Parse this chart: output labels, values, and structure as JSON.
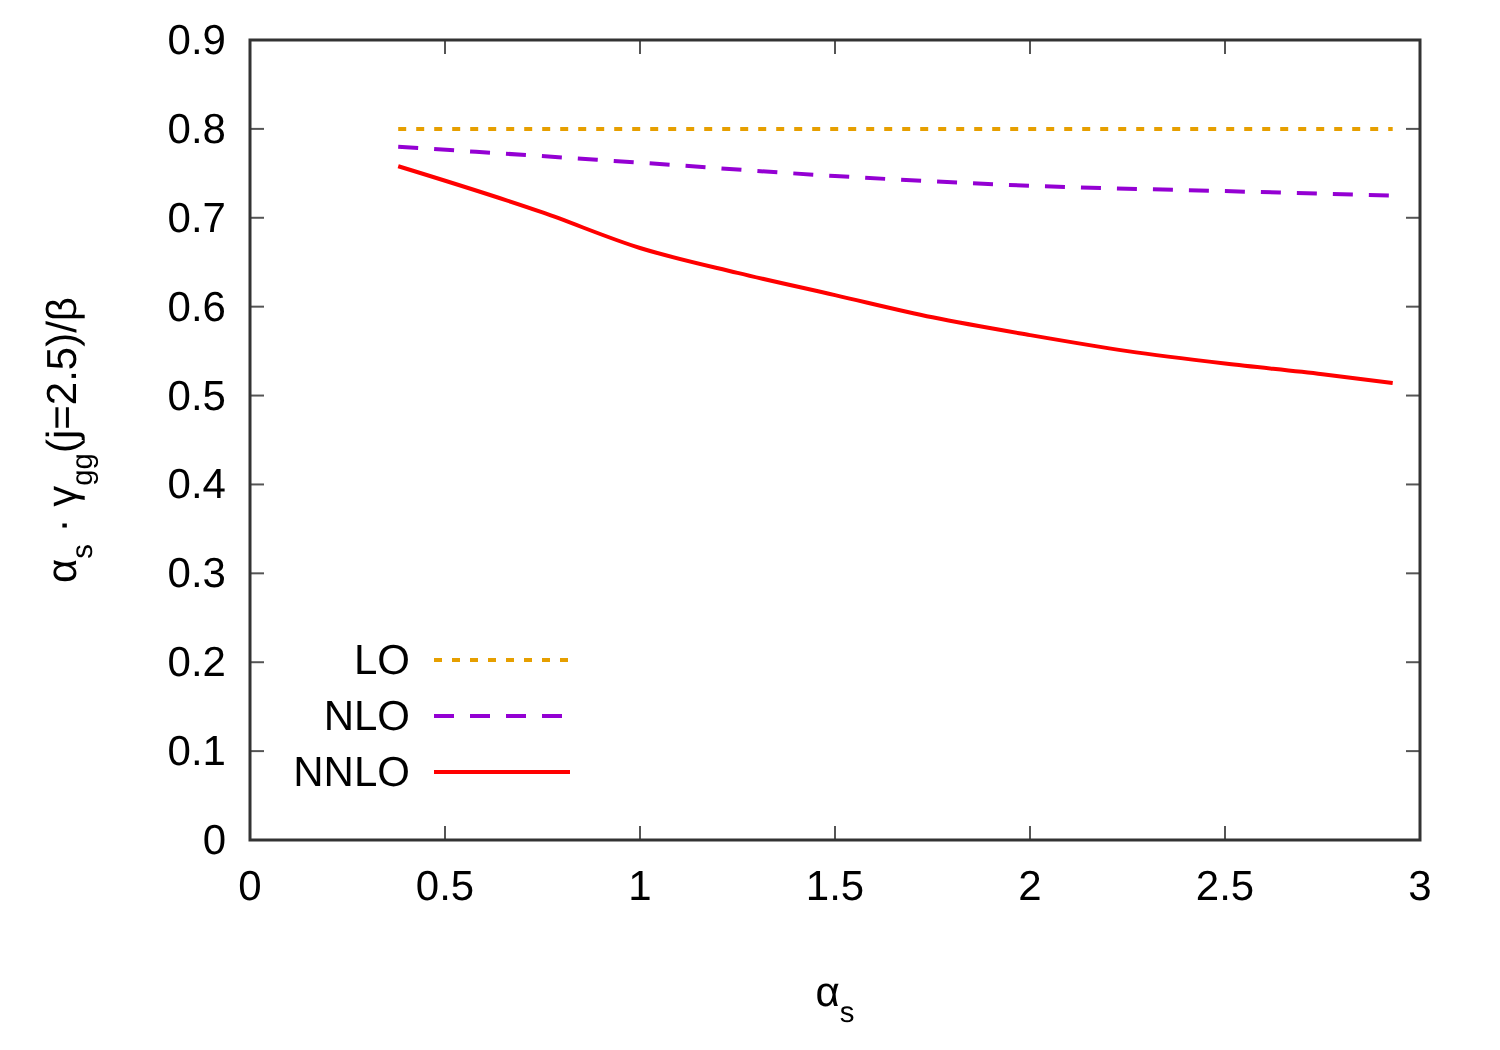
{
  "chart_data": {
    "type": "line",
    "xlabel": "α$_{s}$",
    "ylabel": "α$_{s}$ · γ$_{gg}$(j=2.5)/β",
    "xlim": [
      0,
      3
    ],
    "xticks": [
      0,
      0.5,
      1,
      1.5,
      2,
      2.5,
      3
    ],
    "ylim": [
      0,
      0.9
    ],
    "yticks": [
      0,
      0.1,
      0.2,
      0.3,
      0.4,
      0.5,
      0.6,
      0.7,
      0.8,
      0.9
    ],
    "grid": false,
    "legend": "bottom left",
    "series": [
      {
        "name": "LO",
        "color": "#e69f00",
        "line_style": "dotted",
        "x": [
          0.38,
          2.93
        ],
        "values": [
          0.8,
          0.8
        ]
      },
      {
        "name": "NLO",
        "color": "#9400d3",
        "line_style": "dashed",
        "x": [
          0.38,
          1,
          1.5,
          2,
          2.5,
          2.93
        ],
        "values": [
          0.78,
          0.762,
          0.747,
          0.736,
          0.73,
          0.725
        ]
      },
      {
        "name": "NNLO",
        "color": "#ff0000",
        "line_style": "solid",
        "x": [
          0.38,
          0.75,
          1,
          1.25,
          1.5,
          1.75,
          2,
          2.25,
          2.5,
          2.75,
          2.93
        ],
        "values": [
          0.758,
          0.706,
          0.666,
          0.638,
          0.613,
          0.588,
          0.568,
          0.55,
          0.536,
          0.524,
          0.514
        ]
      }
    ]
  }
}
